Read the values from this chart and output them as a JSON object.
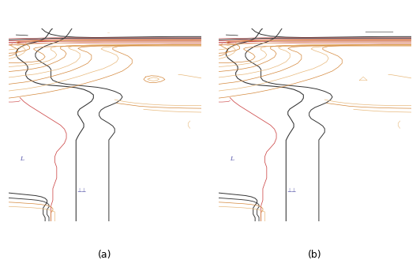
{
  "label_a": "(a)",
  "label_b": "(b)",
  "bg_color": "#ffffff",
  "black_color": "#333333",
  "orange_color": "#d4873a",
  "light_orange_color": "#e8b87a",
  "red_color": "#cc4444",
  "dark_red_color": "#bb2222",
  "blue_label_color": "#5555aa",
  "gray_color": "#999999",
  "lw_major": 0.7,
  "lw_minor": 0.5,
  "lw_red": 0.55,
  "figsize": [
    5.32,
    3.29
  ],
  "dpi": 100
}
